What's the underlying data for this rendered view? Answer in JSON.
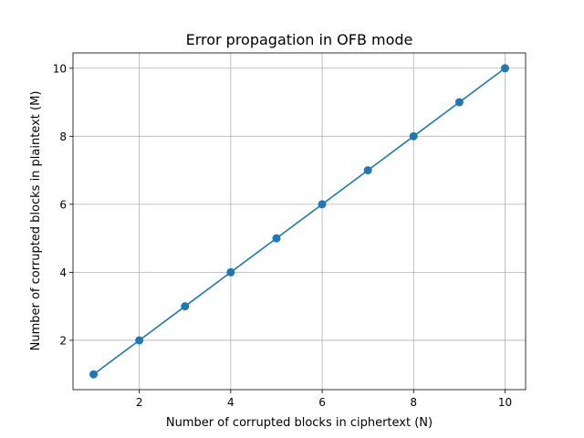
{
  "chart_data": {
    "type": "line",
    "title": "Error propagation in OFB mode",
    "xlabel": "Number of corrupted blocks in ciphertext (N)",
    "ylabel": "Number of corrupted blocks in plaintext (M)",
    "x": [
      1,
      2,
      3,
      4,
      5,
      6,
      7,
      8,
      9,
      10
    ],
    "series": [
      {
        "values": [
          1,
          2,
          3,
          4,
          5,
          6,
          7,
          8,
          9,
          10
        ],
        "color": "#1f77b4",
        "marker": "circle"
      }
    ],
    "xlim": [
      0.55,
      10.45
    ],
    "ylim": [
      0.55,
      10.45
    ],
    "xticks": [
      2,
      4,
      6,
      8,
      10
    ],
    "yticks": [
      2,
      4,
      6,
      8,
      10
    ],
    "grid": true,
    "grid_color": "#b0b0b0",
    "axis_color": "#000000"
  }
}
